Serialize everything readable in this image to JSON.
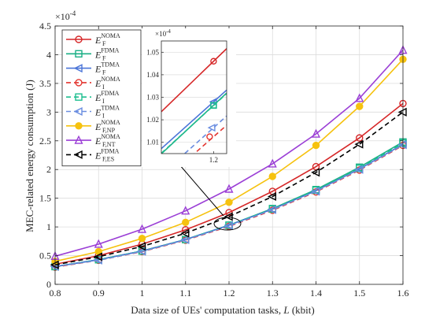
{
  "chart_data": {
    "type": "line",
    "title": "",
    "xlabel": "Data size of UEs' computation tasks, ",
    "xlabel_var": "L",
    "xlabel_unit": " (kbit)",
    "ylabel": "MEC-related energy consumption (J)",
    "y_exponent_label": "×10",
    "y_exponent_power": "-4",
    "xlim": [
      0.8,
      1.6
    ],
    "ylim": [
      0,
      4.5
    ],
    "x_ticks": [
      "0.8",
      "0.9",
      "1",
      "1.1",
      "1.2",
      "1.3",
      "1.4",
      "1.5",
      "1.6"
    ],
    "y_ticks": [
      "0",
      "0.5",
      "1",
      "1.5",
      "2",
      "2.5",
      "3",
      "3.5",
      "4",
      "4.5"
    ],
    "grid": true,
    "legend_position": "top-left",
    "x": [
      0.8,
      0.9,
      1.0,
      1.1,
      1.2,
      1.3,
      1.4,
      1.5,
      1.6
    ],
    "series": [
      {
        "label_base": "E",
        "label_sup": "NOMA",
        "label_sub": "F",
        "color": "#d62728",
        "dash": "solid",
        "marker": "circle",
        "values": [
          0.35,
          0.5,
          0.7,
          0.95,
          1.25,
          1.62,
          2.05,
          2.55,
          3.15
        ]
      },
      {
        "label_base": "E",
        "label_sup": "FDMA",
        "label_sub": "F",
        "color": "#1aaf85",
        "dash": "solid",
        "marker": "square",
        "values": [
          0.31,
          0.43,
          0.58,
          0.78,
          1.03,
          1.32,
          1.65,
          2.04,
          2.48
        ]
      },
      {
        "label_base": "E",
        "label_sup": "TDMA",
        "label_sub": "F",
        "color": "#4a74d8",
        "dash": "solid",
        "marker": "tri-left",
        "values": [
          0.31,
          0.43,
          0.58,
          0.78,
          1.03,
          1.31,
          1.63,
          2.01,
          2.44
        ]
      },
      {
        "label_base": "E",
        "label_sup": "NOMA",
        "label_sub": "I",
        "color": "#e3342f",
        "dash": "dashed",
        "marker": "circle",
        "values": [
          0.3,
          0.42,
          0.57,
          0.77,
          1.01,
          1.29,
          1.61,
          1.99,
          2.42
        ]
      },
      {
        "label_base": "E",
        "label_sup": "FDMA",
        "label_sub": "I",
        "color": "#1fbf90",
        "dash": "dashed",
        "marker": "square",
        "values": [
          0.31,
          0.43,
          0.58,
          0.78,
          1.03,
          1.31,
          1.64,
          2.02,
          2.46
        ]
      },
      {
        "label_base": "E",
        "label_sup": "TDMA",
        "label_sub": "I",
        "color": "#6a8de0",
        "dash": "dashed",
        "marker": "tri-left",
        "values": [
          0.31,
          0.42,
          0.575,
          0.775,
          1.02,
          1.3,
          1.62,
          2.0,
          2.43
        ]
      },
      {
        "label_base": "E",
        "label_sup": "NOMA",
        "label_sub": "F,NP",
        "color": "#f6c20f",
        "dash": "solid",
        "marker": "circle-filled",
        "values": [
          0.4,
          0.57,
          0.8,
          1.08,
          1.43,
          1.88,
          2.42,
          3.1,
          3.92
        ]
      },
      {
        "label_base": "E",
        "label_sup": "NOMA",
        "label_sub": "F,NT",
        "color": "#9b3fd6",
        "dash": "solid",
        "marker": "tri-up",
        "values": [
          0.49,
          0.7,
          0.96,
          1.28,
          1.66,
          2.1,
          2.62,
          3.24,
          4.08
        ]
      },
      {
        "label_base": "E",
        "label_sup": "FDMA",
        "label_sub": "F,ES",
        "color": "#000000",
        "dash": "dashed",
        "marker": "tri-left",
        "values": [
          0.34,
          0.48,
          0.66,
          0.89,
          1.18,
          1.53,
          1.95,
          2.44,
          3.0
        ]
      }
    ],
    "inset": {
      "exponent_label": "×10",
      "exponent_power": "-4",
      "x_ticks": [
        "1.2"
      ],
      "y_ticks": [
        "1.01",
        "1.02",
        "1.03",
        "1.04",
        "1.05"
      ],
      "xlim": [
        1.192,
        1.202
      ],
      "ylim": [
        1.005,
        1.055
      ]
    }
  }
}
